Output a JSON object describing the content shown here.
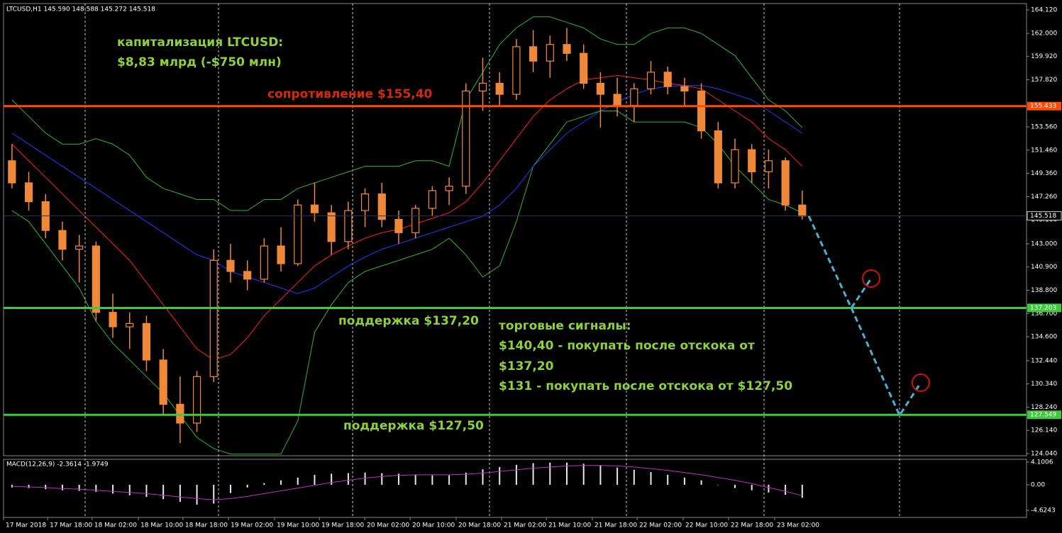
{
  "chart_data": [
    {
      "type": "candlestick",
      "title": "LTCUSD,H1  145.590 148.588 145.272 145.518",
      "xlim": [
        -0.5,
        60.34
      ],
      "ylim": [
        123.85,
        164.7
      ],
      "xticks": [
        {
          "value": -0.5,
          "label": "17 Mar 2018"
        },
        {
          "value": 2.12,
          "label": "17 Mar 18:00"
        },
        {
          "value": 4.77,
          "label": "18 Mar 02:00"
        },
        {
          "value": 7.52,
          "label": "18 Mar 10:00"
        },
        {
          "value": 10.17,
          "label": "18 Mar 18:00"
        },
        {
          "value": 12.88,
          "label": "19 Mar 02:00"
        },
        {
          "value": 15.62,
          "label": "19 Mar 10:00"
        },
        {
          "value": 18.28,
          "label": "19 Mar 18:00"
        },
        {
          "value": 20.98,
          "label": "20 Mar 02:00"
        },
        {
          "value": 23.68,
          "label": "20 Mar 10:00"
        },
        {
          "value": 26.42,
          "label": "20 Mar 18:00"
        },
        {
          "value": 29.12,
          "label": "21 Mar 02:00"
        },
        {
          "value": 31.78,
          "label": "21 Mar 10:00"
        },
        {
          "value": 34.52,
          "label": "21 Mar 18:00"
        },
        {
          "value": 37.18,
          "label": "22 Mar 02:00"
        },
        {
          "value": 39.92,
          "label": "22 Mar 10:00"
        },
        {
          "value": 42.62,
          "label": "22 Mar 18:00"
        },
        {
          "value": 45.36,
          "label": "23 Mar 02:00"
        }
      ],
      "yticks": [
        {
          "value": 164.12,
          "label": "164.120"
        },
        {
          "value": 162,
          "label": "162.000"
        },
        {
          "value": 159.92,
          "label": "159.920"
        },
        {
          "value": 157.82,
          "label": "157.820"
        },
        {
          "value": 153.56,
          "label": "153.560"
        },
        {
          "value": 151.46,
          "label": "151.460"
        },
        {
          "value": 149.36,
          "label": "149.360"
        },
        {
          "value": 147.26,
          "label": "147.260"
        },
        {
          "value": 145.16,
          "label": "145.160"
        },
        {
          "value": 143,
          "label": "143.000"
        },
        {
          "value": 140.9,
          "label": "140.900"
        },
        {
          "value": 138.8,
          "label": "138.800"
        },
        {
          "value": 136.7,
          "label": "136.700"
        },
        {
          "value": 134.6,
          "label": "134.600"
        },
        {
          "value": 132.44,
          "label": "132.440"
        },
        {
          "value": 130.34,
          "label": "130.340"
        },
        {
          "value": 128.24,
          "label": "128.240"
        },
        {
          "value": 126.14,
          "label": "126.140"
        },
        {
          "value": 124.04,
          "label": "124.040"
        }
      ],
      "color": "#f0883a",
      "open": [
        150.5,
        148.5,
        146.8,
        144.2,
        142.5,
        142.8,
        136.8,
        135.5,
        135.8,
        132.5,
        128.5,
        126.8,
        131,
        141.5,
        140.5,
        139.8,
        142.8,
        141.2,
        146.5,
        145.8,
        143.2,
        146,
        147.5,
        145.2,
        144,
        146.2,
        147.8,
        148.2,
        156.8,
        157.5,
        156.5,
        160.8,
        159.5,
        161,
        160.2,
        157.5,
        156.5,
        155.5,
        157,
        158.5,
        157.2,
        156.8,
        153.2,
        148.5,
        151.5,
        149.5,
        150.5,
        146.5
      ],
      "high": [
        152,
        149.5,
        147.5,
        145,
        143.8,
        143.2,
        138.5,
        136.8,
        136.5,
        133.5,
        131,
        131.5,
        142.5,
        143,
        141.5,
        143.5,
        144.5,
        147,
        148.5,
        146.5,
        146.8,
        148,
        148.5,
        146,
        146.5,
        148.2,
        149,
        157.5,
        159.8,
        158.5,
        161.5,
        162.3,
        161.8,
        162.5,
        161,
        158.5,
        158,
        157.5,
        159.5,
        159,
        158,
        157.5,
        154,
        152.5,
        152,
        151.5,
        150.8,
        147.8
      ],
      "low": [
        148,
        146,
        143.5,
        141.5,
        139.5,
        136,
        134.5,
        133.5,
        131.5,
        127.5,
        125,
        126,
        130.5,
        139.5,
        138.8,
        139.5,
        140.5,
        141,
        145,
        142,
        142.5,
        144.5,
        144.5,
        143,
        143.5,
        145.5,
        146.5,
        147.5,
        155,
        155.5,
        156,
        158.5,
        158,
        159.5,
        157,
        153.5,
        154.5,
        154,
        156.5,
        156.5,
        155.5,
        152.5,
        148,
        148,
        148.5,
        148,
        146,
        145.2
      ],
      "close": [
        148.5,
        146.8,
        144.2,
        142.5,
        142.8,
        136.8,
        135.5,
        135.8,
        132.5,
        128.5,
        126.8,
        131,
        141.5,
        140.5,
        139.8,
        142.8,
        141.2,
        146.5,
        145.8,
        143.2,
        146,
        147.5,
        145.2,
        144,
        146.2,
        147.8,
        148.2,
        156.8,
        157.5,
        156.5,
        160.8,
        159.5,
        161,
        160.2,
        157.5,
        156.5,
        155.5,
        157,
        158.5,
        157.2,
        156.8,
        153.2,
        148.5,
        151.5,
        149.5,
        150.5,
        146.5,
        145.5
      ],
      "lines": [
        {
          "color": "#2fb52f",
          "values": [
            156,
            154.5,
            153,
            152,
            152,
            152.5,
            152,
            151,
            149,
            148,
            147.5,
            147,
            147,
            146,
            146,
            147,
            147,
            148,
            148.5,
            149,
            149.5,
            150,
            150,
            150,
            150.5,
            150.5,
            150,
            156,
            158.5,
            161,
            162.5,
            163.5,
            163.5,
            163,
            162.5,
            161.5,
            161,
            161,
            162,
            162.5,
            162.5,
            162,
            161,
            160,
            158,
            156,
            155,
            153.5
          ]
        },
        {
          "color": "#2fb52f",
          "values": [
            146,
            145,
            143,
            141,
            139,
            136,
            134,
            132.5,
            131,
            129.5,
            127.5,
            125.5,
            124.5,
            124,
            124,
            124,
            124,
            127,
            135,
            137.5,
            139.5,
            140.5,
            141,
            141.5,
            142,
            142.5,
            143.5,
            142,
            140,
            141,
            145,
            150,
            152,
            154,
            154.5,
            155,
            155,
            154,
            154,
            154,
            154,
            153.5,
            152,
            150,
            148.5,
            147,
            146.5,
            145.8
          ]
        },
        {
          "color": "#ff2020",
          "values": [
            152,
            150.5,
            149,
            147.5,
            146,
            144.5,
            143,
            141.5,
            139.5,
            137.5,
            135.5,
            133.5,
            132.5,
            133,
            134.5,
            136.5,
            138,
            139.5,
            141,
            142,
            142.8,
            143.5,
            144,
            144.3,
            144.8,
            145.3,
            145.8,
            146.8,
            148.5,
            150.5,
            152.5,
            154.5,
            156,
            157,
            157.8,
            158,
            158.2,
            158,
            157.8,
            157.5,
            157.3,
            157,
            156,
            155,
            154,
            152.5,
            151.5,
            150
          ]
        },
        {
          "color": "#2438ff",
          "values": [
            153,
            152,
            151,
            150,
            149,
            148,
            147,
            146,
            145,
            144,
            143,
            142,
            141.5,
            140.5,
            140,
            139.5,
            139,
            138.5,
            139,
            140,
            141,
            141.8,
            142.5,
            143,
            143.5,
            144,
            144.5,
            145,
            145.5,
            146.5,
            148,
            150,
            151.5,
            153,
            154,
            155,
            155.8,
            156.5,
            157,
            157.2,
            157.3,
            157.3,
            157,
            156.5,
            156,
            155,
            154,
            153
          ]
        }
      ],
      "levels": [
        {
          "value": 155.433,
          "color": "#ff4a0a"
        },
        {
          "value": 137.203,
          "color": "#3ec93e"
        },
        {
          "value": 127.549,
          "color": "#3ec93e"
        }
      ],
      "last_price": 145.518,
      "forecast": [
        {
          "color": "#4ab0d0",
          "x": [
            47.39,
            49.92,
            51.1
          ],
          "values": [
            145.5,
            137.2,
            139.86
          ]
        },
        {
          "color": "#4ab0d0",
          "x": [
            49.92,
            52.79,
            54.05
          ],
          "values": [
            137.2,
            127.5,
            130.45
          ]
        }
      ],
      "annotations": [
        "капитализация LTCUSD:",
        "$8,83 млрд (-$750 млн)",
        "сопротивление $155,40",
        "поддержка $137,20",
        "торговые сигналы:",
        "$140,40 - покупать после отскока от",
        "$137,20",
        "$131 - покупать после отскока от $127,50",
        "поддержка $127,50"
      ]
    },
    {
      "type": "bar",
      "title": "MACD(12,26,9) -2.3614 -1.9749",
      "ylim": [
        -5.9,
        4.6
      ],
      "yticks": [
        4.1006,
        {
          "value": 0,
          "label": "0.00"
        },
        -4.6243
      ],
      "series": [
        {
          "color": "#e8e8e8",
          "values": [
            -0.5,
            -0.6,
            -0.8,
            -1,
            -1.1,
            -1.3,
            -1.6,
            -1.9,
            -2.2,
            -2.6,
            -3.1,
            -3.6,
            -3.4,
            -1.5,
            -0.5,
            0.3,
            0.8,
            1.3,
            1.8,
            2,
            2.1,
            2.2,
            2.1,
            2,
            1.8,
            1.7,
            1.7,
            2.2,
            2.8,
            3.2,
            3.6,
            3.9,
            4,
            4,
            3.8,
            3.5,
            3.1,
            2.7,
            2.3,
            1.8,
            1.3,
            0.8,
            0,
            -0.6,
            -1,
            -1.4,
            -1.8,
            -2.36
          ]
        },
        {
          "color": "#c030c0",
          "values": [
            -0.3,
            -0.4,
            -0.5,
            -0.7,
            -0.8,
            -1,
            -1.2,
            -1.4,
            -1.6,
            -1.9,
            -2.2,
            -2.5,
            -2.7,
            -2.5,
            -2.1,
            -1.6,
            -1.1,
            -0.6,
            -0.1,
            0.4,
            0.8,
            1.2,
            1.5,
            1.7,
            1.8,
            1.8,
            1.8,
            1.9,
            2.1,
            2.4,
            2.7,
            3,
            3.2,
            3.4,
            3.5,
            3.5,
            3.4,
            3.2,
            2.9,
            2.6,
            2.2,
            1.8,
            1.3,
            0.8,
            0.2,
            -0.5,
            -1.2,
            -1.97
          ]
        }
      ]
    }
  ]
}
